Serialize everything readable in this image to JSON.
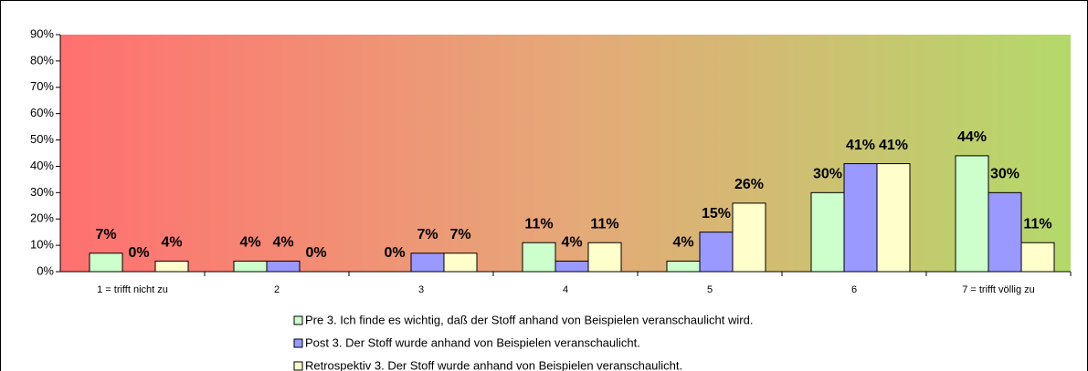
{
  "chart_data": {
    "type": "bar",
    "categories": [
      "1 = trifft nicht zu",
      "2",
      "3",
      "4",
      "5",
      "6",
      "7 = trifft völlig zu"
    ],
    "series": [
      {
        "name": "Pre 3. Ich finde es wichtig, daß der Stoff anhand von Beispielen veranschaulicht wird.",
        "color": "#ccffcc",
        "values": [
          7,
          4,
          0,
          11,
          4,
          30,
          44
        ],
        "value_labels": [
          "7%",
          "4%",
          "0%",
          "11%",
          "4%",
          "30%",
          "44%"
        ]
      },
      {
        "name": "Post 3. Der Stoff wurde anhand von Beispielen veranschaulicht.",
        "color": "#9999ff",
        "values": [
          0,
          4,
          7,
          4,
          15,
          41,
          30
        ],
        "value_labels": [
          "0%",
          "4%",
          "7%",
          "4%",
          "15%",
          "41%",
          "30%"
        ]
      },
      {
        "name": "Retrospektiv 3. Der Stoff wurde anhand von Beispielen veranschaulicht.",
        "color": "#ffffcc",
        "values": [
          4,
          0,
          7,
          11,
          26,
          41,
          11
        ],
        "value_labels": [
          "4%",
          "0%",
          "7%",
          "11%",
          "26%",
          "41%",
          "11%"
        ]
      }
    ],
    "ylim": [
      0,
      90
    ],
    "yticks": [
      {
        "value": 0,
        "label": "0%"
      },
      {
        "value": 10,
        "label": "10%"
      },
      {
        "value": 20,
        "label": "20%"
      },
      {
        "value": 30,
        "label": "30%"
      },
      {
        "value": 40,
        "label": "40%"
      },
      {
        "value": 50,
        "label": "50%"
      },
      {
        "value": 60,
        "label": "60%"
      },
      {
        "value": 70,
        "label": "70%"
      },
      {
        "value": 80,
        "label": "80%"
      },
      {
        "value": 90,
        "label": "90%"
      }
    ],
    "legend": "bottom"
  }
}
